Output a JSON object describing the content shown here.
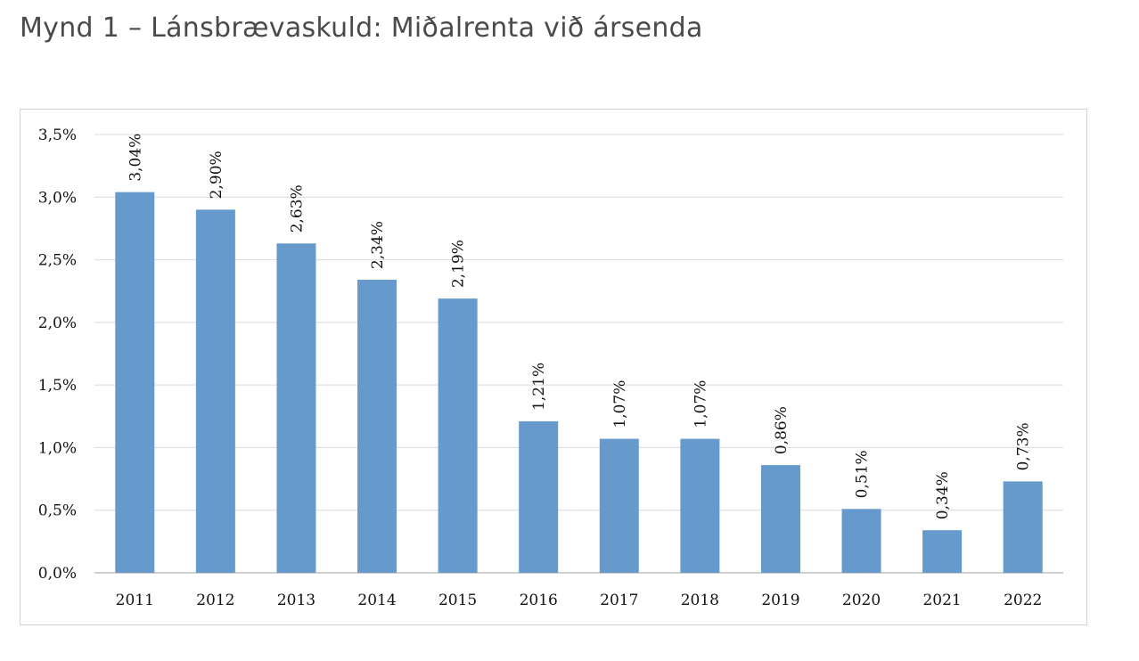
{
  "title": "Mynd 1 – Lánsbrævaskuld: Miðalrenta við ársenda",
  "colors": {
    "bar": "#6699cc",
    "grid": "#d9d9d9",
    "axis": "#bfbfbf"
  },
  "chart_data": {
    "type": "bar",
    "categories": [
      "2011",
      "2012",
      "2013",
      "2014",
      "2015",
      "2016",
      "2017",
      "2018",
      "2019",
      "2020",
      "2021",
      "2022"
    ],
    "values": [
      3.04,
      2.9,
      2.63,
      2.34,
      2.19,
      1.21,
      1.07,
      1.07,
      0.86,
      0.51,
      0.34,
      0.73
    ],
    "data_labels": [
      "3,04%",
      "2,90%",
      "2,63%",
      "2,34%",
      "2,19%",
      "1,21%",
      "1,07%",
      "1,07%",
      "0,86%",
      "0,51%",
      "0,34%",
      "0,73%"
    ],
    "yticks": [
      0,
      0.5,
      1.0,
      1.5,
      2.0,
      2.5,
      3.0,
      3.5
    ],
    "ytick_labels": [
      "0,0%",
      "0,5%",
      "1,0%",
      "1,5%",
      "2,0%",
      "2,5%",
      "3,0%",
      "3,5%"
    ],
    "ylim": [
      0,
      3.5
    ],
    "grid": true,
    "xlabel": "",
    "ylabel": ""
  }
}
